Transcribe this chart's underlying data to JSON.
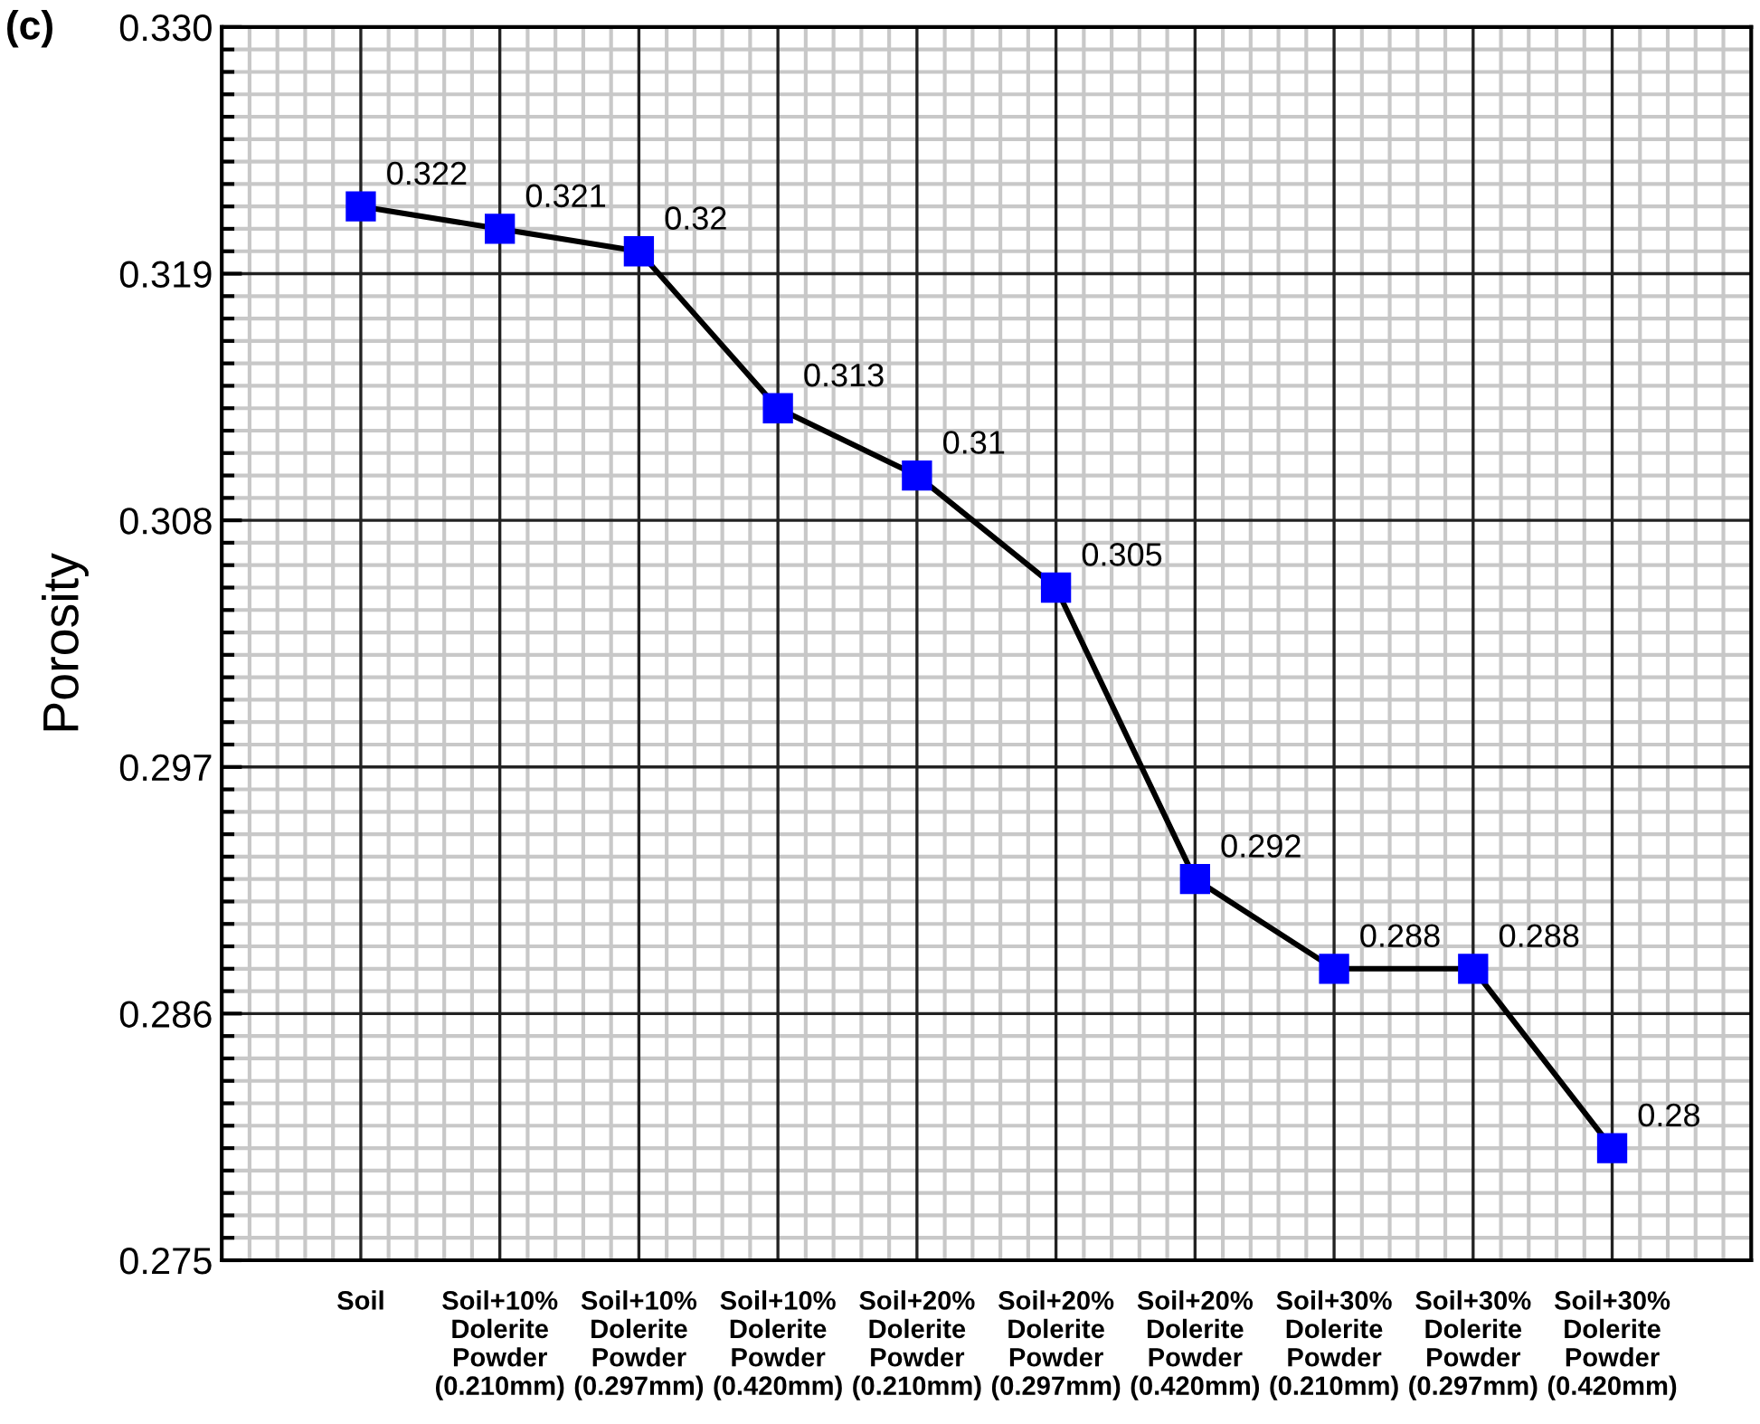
{
  "chart_data": {
    "type": "line",
    "ylabel": "Porosity",
    "annotations": [
      "(c)"
    ],
    "categories": [
      "Soil",
      "Soil+10%\nDolerite\nPowder\n(0.210mm)",
      "Soil+10%\nDolerite\nPowder\n(0.297mm)",
      "Soil+10%\nDolerite\nPowder\n(0.420mm)",
      "Soil+20%\nDolerite\nPowder\n(0.210mm)",
      "Soil+20%\nDolerite\nPowder\n(0.297mm)",
      "Soil+20%\nDolerite\nPowder\n(0.420mm)",
      "Soil+30%\nDolerite\nPowder\n(0.210mm)",
      "Soil+30%\nDolerite\nPowder\n(0.297mm)",
      "Soil+30%\nDolerite\nPowder\n(0.420mm)"
    ],
    "series": [
      {
        "color": "#0000ff",
        "values": [
          0.322,
          0.321,
          0.32,
          0.313,
          0.31,
          0.305,
          0.292,
          0.288,
          0.288,
          0.28
        ]
      }
    ],
    "ylim": [
      0.275,
      0.33
    ],
    "yticks": [
      {
        "value": 0.275,
        "label": "0.275"
      },
      {
        "value": 0.286,
        "label": "0.286"
      },
      {
        "value": 0.297,
        "label": "0.297"
      },
      {
        "value": 0.308,
        "label": "0.308"
      },
      {
        "value": 0.319,
        "label": "0.319"
      },
      {
        "value": 0.33,
        "label": "0.330"
      }
    ],
    "grid": true,
    "marker": "square",
    "line_style": "solid",
    "data_labels": true
  }
}
